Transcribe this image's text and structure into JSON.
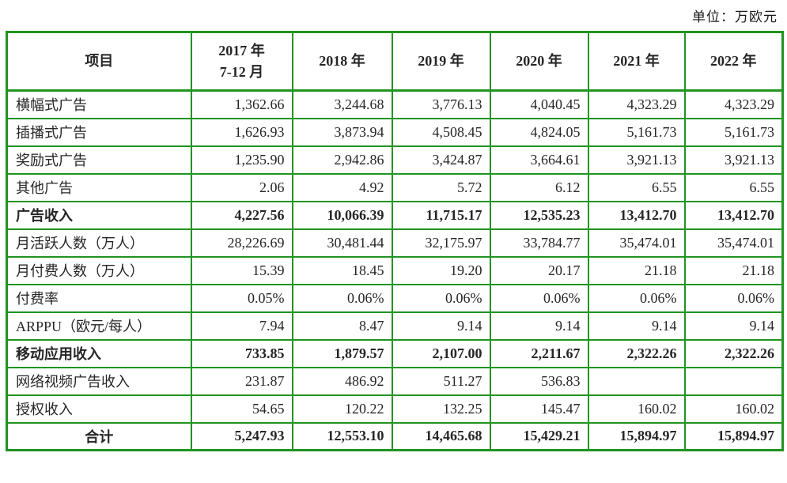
{
  "unit_label": "单位：万欧元",
  "colors": {
    "border_green": "#219421",
    "text": "#262626",
    "background": "#ffffff"
  },
  "table": {
    "header": {
      "item_col": "项目",
      "year_cols": [
        {
          "lines": [
            "2017 年",
            "7-12 月"
          ]
        },
        {
          "lines": [
            "2018 年"
          ]
        },
        {
          "lines": [
            "2019 年"
          ]
        },
        {
          "lines": [
            "2020 年"
          ]
        },
        {
          "lines": [
            "2021 年"
          ]
        },
        {
          "lines": [
            "2022 年"
          ]
        }
      ]
    },
    "rows": [
      {
        "label": "横幅式广告",
        "bold": false,
        "label_align": "left",
        "values": [
          "1,362.66",
          "3,244.68",
          "3,776.13",
          "4,040.45",
          "4,323.29",
          "4,323.29"
        ]
      },
      {
        "label": "插播式广告",
        "bold": false,
        "label_align": "left",
        "values": [
          "1,626.93",
          "3,873.94",
          "4,508.45",
          "4,824.05",
          "5,161.73",
          "5,161.73"
        ]
      },
      {
        "label": "奖励式广告",
        "bold": false,
        "label_align": "left",
        "values": [
          "1,235.90",
          "2,942.86",
          "3,424.87",
          "3,664.61",
          "3,921.13",
          "3,921.13"
        ]
      },
      {
        "label": "其他广告",
        "bold": false,
        "label_align": "left",
        "values": [
          "2.06",
          "4.92",
          "5.72",
          "6.12",
          "6.55",
          "6.55"
        ]
      },
      {
        "label": "广告收入",
        "bold": true,
        "label_align": "left",
        "values": [
          "4,227.56",
          "10,066.39",
          "11,715.17",
          "12,535.23",
          "13,412.70",
          "13,412.70"
        ]
      },
      {
        "label": "月活跃人数（万人）",
        "bold": false,
        "label_align": "left",
        "values": [
          "28,226.69",
          "30,481.44",
          "32,175.97",
          "33,784.77",
          "35,474.01",
          "35,474.01"
        ]
      },
      {
        "label": "月付费人数（万人）",
        "bold": false,
        "label_align": "left",
        "values": [
          "15.39",
          "18.45",
          "19.20",
          "20.17",
          "21.18",
          "21.18"
        ]
      },
      {
        "label": "付费率",
        "bold": false,
        "label_align": "left",
        "values": [
          "0.05%",
          "0.06%",
          "0.06%",
          "0.06%",
          "0.06%",
          "0.06%"
        ]
      },
      {
        "label": "ARPPU（欧元/每人）",
        "bold": false,
        "label_align": "left",
        "values": [
          "7.94",
          "8.47",
          "9.14",
          "9.14",
          "9.14",
          "9.14"
        ]
      },
      {
        "label": "移动应用收入",
        "bold": true,
        "label_align": "left",
        "values": [
          "733.85",
          "1,879.57",
          "2,107.00",
          "2,211.67",
          "2,322.26",
          "2,322.26"
        ]
      },
      {
        "label": "网络视频广告收入",
        "bold": false,
        "label_align": "left",
        "values": [
          "231.87",
          "486.92",
          "511.27",
          "536.83",
          "",
          ""
        ]
      },
      {
        "label": "授权收入",
        "bold": false,
        "label_align": "left",
        "values": [
          "54.65",
          "120.22",
          "132.25",
          "145.47",
          "160.02",
          "160.02"
        ]
      },
      {
        "label": "合计",
        "bold": true,
        "label_align": "center",
        "values": [
          "5,247.93",
          "12,553.10",
          "14,465.68",
          "15,429.21",
          "15,894.97",
          "15,894.97"
        ]
      }
    ]
  }
}
